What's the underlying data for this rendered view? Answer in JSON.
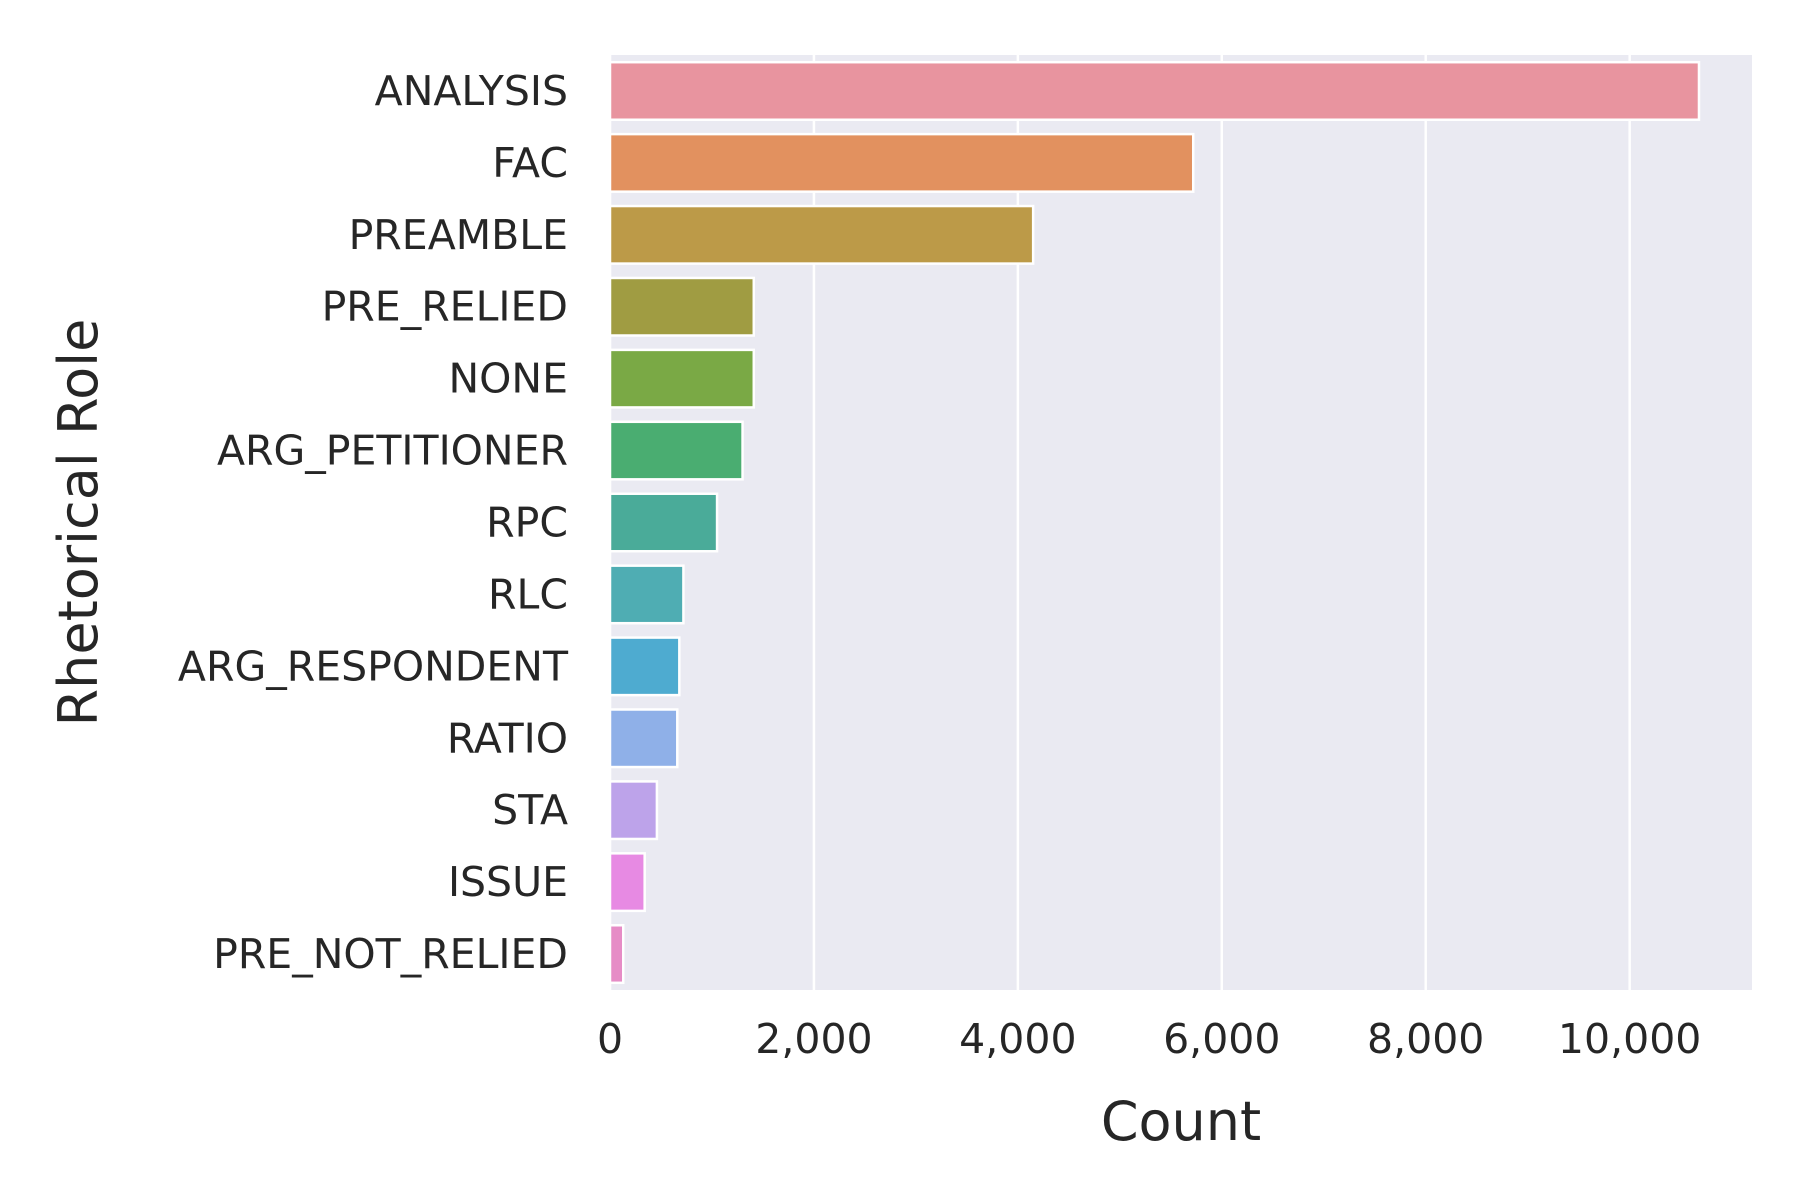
{
  "chart_data": {
    "type": "bar",
    "orientation": "horizontal",
    "title": "",
    "xlabel": "Count",
    "ylabel": "Rhetorical Role",
    "xlim": [
      0,
      11200
    ],
    "xticks": [
      0,
      2000,
      4000,
      6000,
      8000,
      10000
    ],
    "xtick_labels": [
      "0",
      "2,000",
      "4,000",
      "6,000",
      "8,000",
      "10,000"
    ],
    "grid": true,
    "categories": [
      "ANALYSIS",
      "FAC",
      "PREAMBLE",
      "PRE_RELIED",
      "NONE",
      "ARG_PETITIONER",
      "RPC",
      "RLC",
      "ARG_RESPONDENT",
      "RATIO",
      "STA",
      "ISSUE",
      "PRE_NOT_RELIED"
    ],
    "values": [
      10680,
      5720,
      4150,
      1410,
      1410,
      1300,
      1050,
      720,
      680,
      660,
      460,
      340,
      130
    ],
    "colors": [
      "#e8949f",
      "#e2915f",
      "#bc9a48",
      "#a09c42",
      "#7aa945",
      "#4aad71",
      "#4aab99",
      "#4fadb3",
      "#4eabd0",
      "#8fb0e8",
      "#bda3ea",
      "#e78ae3",
      "#e68cc6"
    ],
    "background": "#eaeaf2",
    "gridline_color": "#ffffff"
  }
}
